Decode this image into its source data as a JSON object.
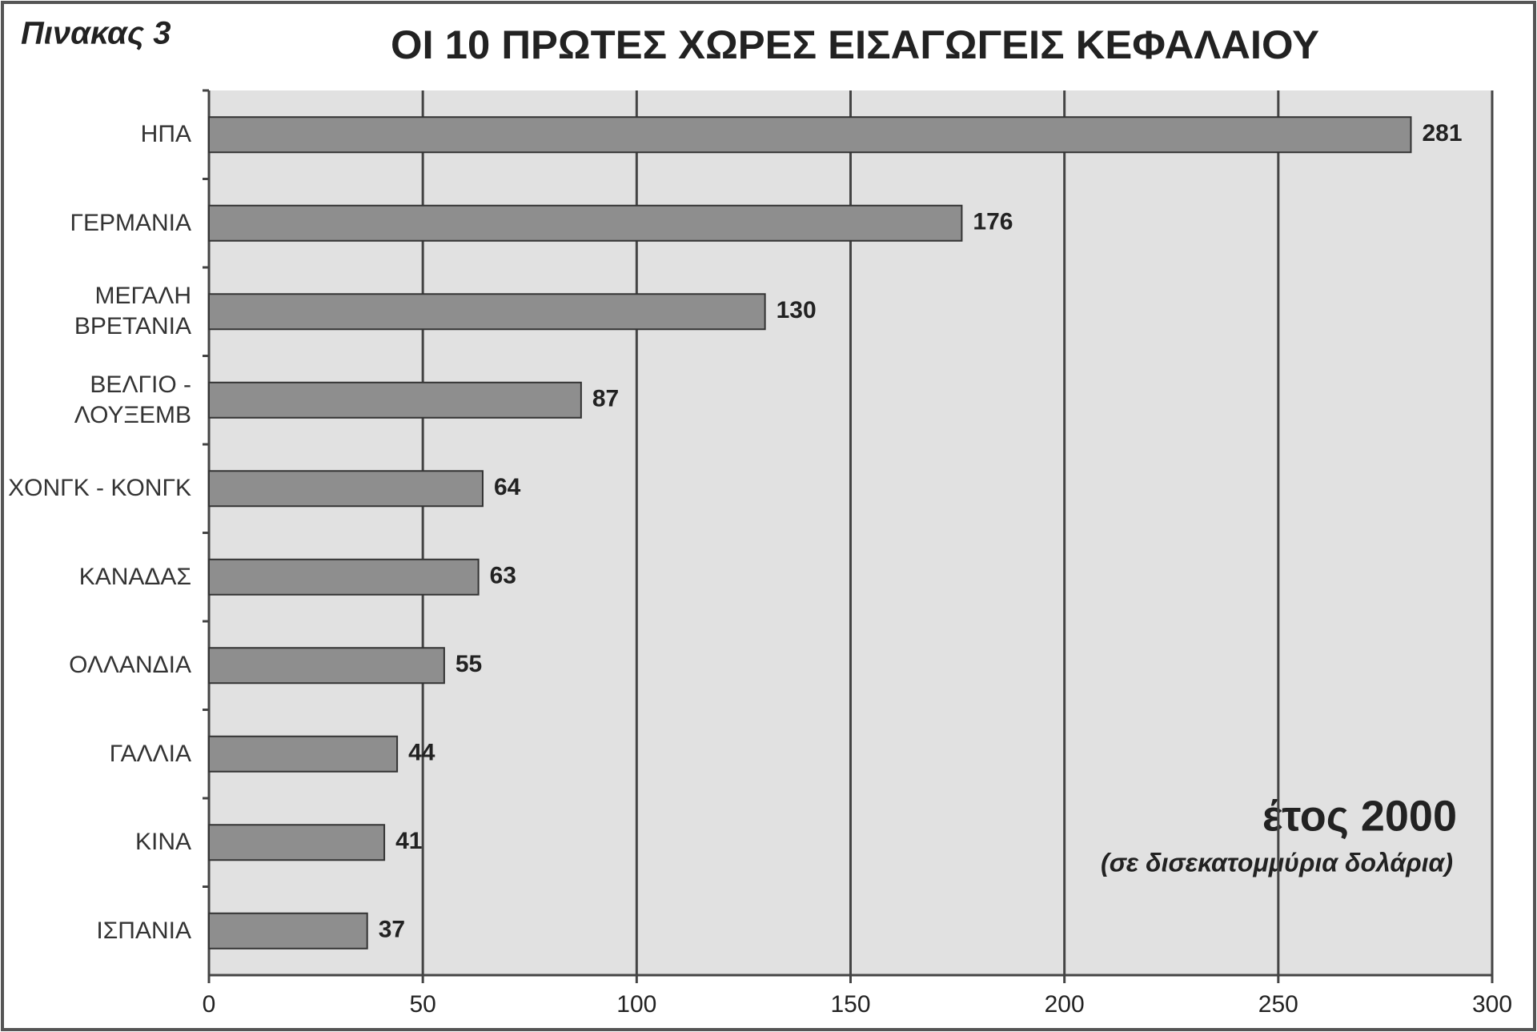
{
  "chart_data": {
    "type": "bar",
    "orientation": "horizontal",
    "table_label": "Πινακας 3",
    "title": "ΟΙ 10 ΠΡΩΤΕΣ ΧΩΡΕΣ ΕΙΣΑΓΩΓΕΙΣ ΚΕΦΑΛΑΙΟΥ",
    "annotation": "έτος 2000",
    "annotation_note": "(σε δισεκατομμύρια  δολάρια)",
    "categories": [
      "ΗΠΑ",
      "ΓΕΡΜΑΝΙΑ",
      "ΜΕΓΑΛΗ\nΒΡΕΤΑΝΙΑ",
      "ΒΕΛΓΙΟ -\nΛΟΥΞΕΜΒ",
      "ΧΟΝΓΚ - ΚΟΝΓΚ",
      "ΚΑΝΑΔΑΣ",
      "ΟΛΛΑΝΔΙΑ",
      "ΓΑΛΛΙΑ",
      "ΚΙΝΑ",
      "ΙΣΠΑΝΙΑ"
    ],
    "values": [
      281,
      176,
      130,
      87,
      64,
      63,
      55,
      44,
      41,
      37
    ],
    "color": "#8e8e8e",
    "xlim": [
      0,
      300
    ],
    "xticks": [
      0,
      50,
      100,
      150,
      200,
      250,
      300
    ],
    "grid": true
  }
}
